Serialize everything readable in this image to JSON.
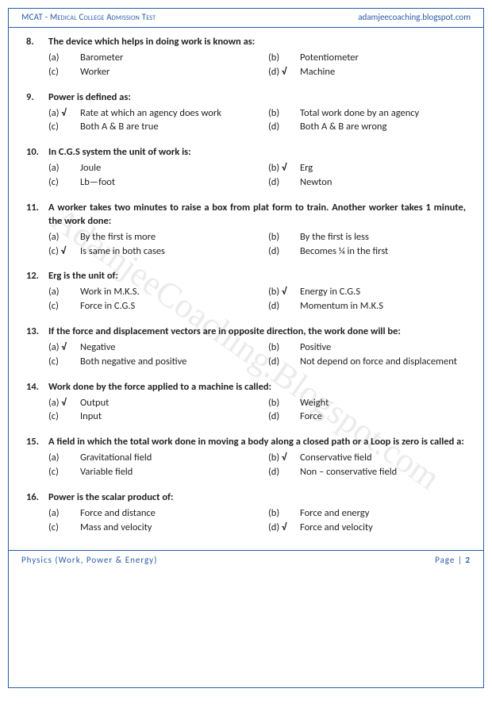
{
  "header": {
    "left": "MCAT  - Medical College Admission Test",
    "right": "adamjeecoaching.blogspot.com"
  },
  "footer": {
    "left": "Physics (Work, Power & Energy)",
    "right_label": "Page",
    "right_sep": "|",
    "right_num": "2"
  },
  "watermark": "AdamjeeCoaching.Blogspot.com",
  "colors": {
    "border": "#2a5ca8",
    "text": "#222222",
    "header_text": "#2a5ca8"
  },
  "questions": [
    {
      "num": "8.",
      "text": "The device which helps in doing work is known as:",
      "opts": [
        {
          "l": "(a)",
          "t": "Barometer",
          "c": false
        },
        {
          "l": "(b)",
          "t": "Potentiometer",
          "c": false
        },
        {
          "l": "(c)",
          "t": "Worker",
          "c": false
        },
        {
          "l": "(d)",
          "t": "Machine",
          "c": true
        }
      ]
    },
    {
      "num": "9.",
      "text": "Power is defined as:",
      "opts": [
        {
          "l": "(a)",
          "t": "Rate at which an agency does work",
          "c": true
        },
        {
          "l": "(b)",
          "t": "Total work done by an agency",
          "c": false
        },
        {
          "l": "(c)",
          "t": "Both A & B are true",
          "c": false
        },
        {
          "l": "(d)",
          "t": "Both A & B are wrong",
          "c": false
        }
      ]
    },
    {
      "num": "10.",
      "text": "In C.G.S system the unit of work is:",
      "opts": [
        {
          "l": "(a)",
          "t": "Joule",
          "c": false
        },
        {
          "l": "(b)",
          "t": "Erg",
          "c": true
        },
        {
          "l": "(c)",
          "t": "Lb—foot",
          "c": false
        },
        {
          "l": "(d)",
          "t": "Newton",
          "c": false
        }
      ]
    },
    {
      "num": "11.",
      "text": "A worker takes two minutes to raise a box from plat form to train. Another worker takes 1 minute, the work done:",
      "opts": [
        {
          "l": "(a)",
          "t": "By the first is more",
          "c": false
        },
        {
          "l": "(b)",
          "t": "By the first is less",
          "c": false
        },
        {
          "l": "(c)",
          "t": "Is same in both cases",
          "c": true
        },
        {
          "l": "(d)",
          "t": "Becomes ¼ in the first",
          "c": false
        }
      ]
    },
    {
      "num": "12.",
      "text": "Erg is the unit of:",
      "opts": [
        {
          "l": "(a)",
          "t": "Work in M.K.S.",
          "c": false
        },
        {
          "l": "(b)",
          "t": "Energy in C.G.S",
          "c": true
        },
        {
          "l": "(c)",
          "t": "Force in C.G.S",
          "c": false
        },
        {
          "l": "(d)",
          "t": "Momentum in M.K.S",
          "c": false
        }
      ]
    },
    {
      "num": "13.",
      "text": "If the force and displacement vectors are in opposite direction, the work done will be:",
      "opts": [
        {
          "l": "(a)",
          "t": "Negative",
          "c": true
        },
        {
          "l": "(b)",
          "t": "Positive",
          "c": false
        },
        {
          "l": "(c)",
          "t": "Both negative and positive",
          "c": false
        },
        {
          "l": "(d)",
          "t": "Not depend on force and displacement",
          "c": false
        }
      ]
    },
    {
      "num": "14.",
      "text": "Work done by the force applied to a machine is called:",
      "opts": [
        {
          "l": "(a)",
          "t": "Output",
          "c": true
        },
        {
          "l": "(b)",
          "t": "Weight",
          "c": false
        },
        {
          "l": "(c)",
          "t": "Input",
          "c": false
        },
        {
          "l": "(d)",
          "t": "Force",
          "c": false
        }
      ]
    },
    {
      "num": "15.",
      "text": "A field in which the total work done in moving a body along a closed path or a Loop is zero is called a:",
      "opts": [
        {
          "l": "(a)",
          "t": "Gravitational field",
          "c": false
        },
        {
          "l": "(b)",
          "t": "Conservative field",
          "c": true
        },
        {
          "l": "(c)",
          "t": "Variable field",
          "c": false
        },
        {
          "l": "(d)",
          "t": "Non – conservative field",
          "c": false
        }
      ]
    },
    {
      "num": "16.",
      "text": "Power is the scalar product of:",
      "opts": [
        {
          "l": "(a)",
          "t": "Force and distance",
          "c": false
        },
        {
          "l": "(b)",
          "t": "Force and energy",
          "c": false
        },
        {
          "l": "(c)",
          "t": "Mass and velocity",
          "c": false
        },
        {
          "l": "(d)",
          "t": "Force and velocity",
          "c": true
        }
      ]
    }
  ]
}
